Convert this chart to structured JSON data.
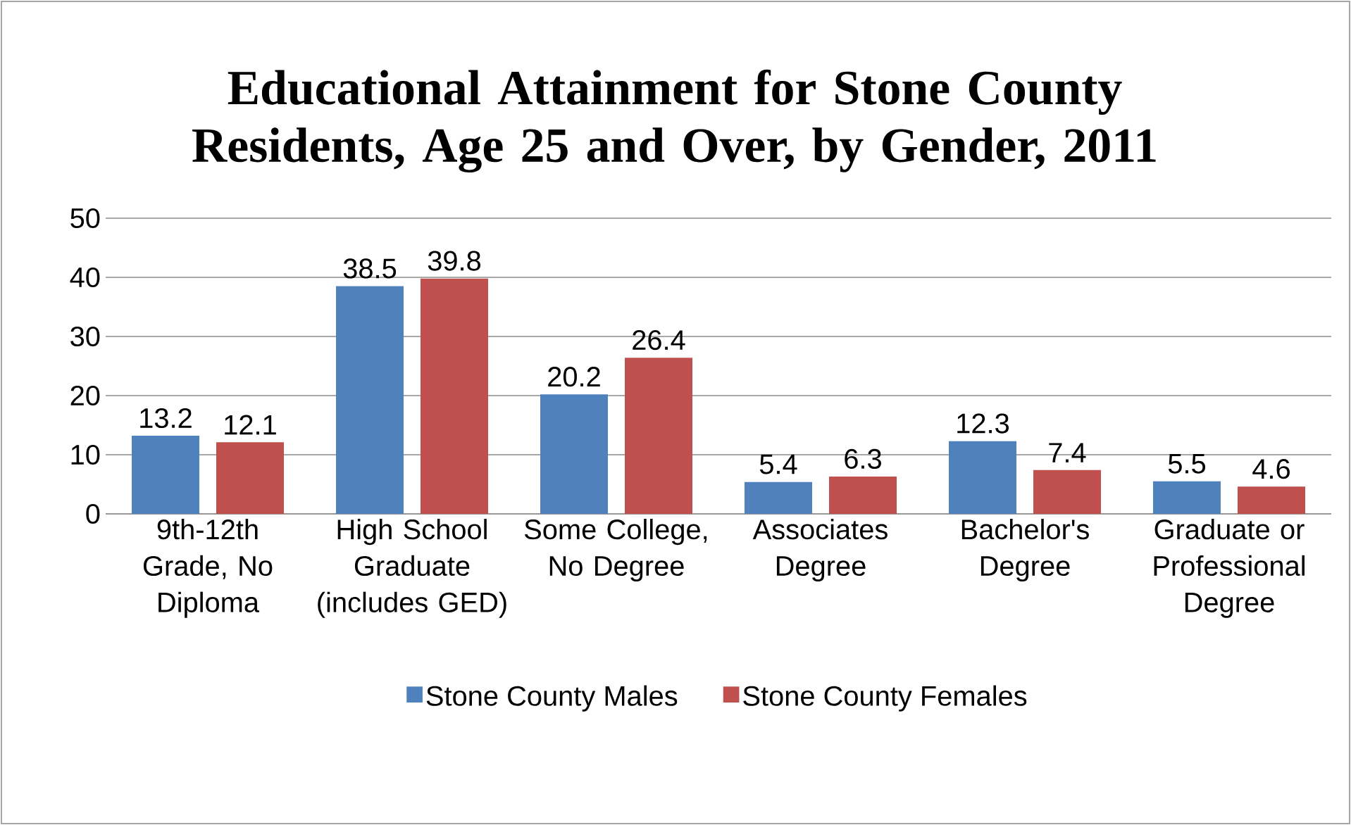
{
  "chart_data": {
    "type": "bar",
    "title": "Educational Attainment for Stone County Residents, Age 25 and Over, by Gender, 2011",
    "categories": [
      "9th-12th Grade, No Diploma",
      "High School Graduate (includes GED)",
      "Some College, No Degree",
      "Associates Degree",
      "Bachelor's Degree",
      "Graduate or Professional Degree"
    ],
    "series": [
      {
        "name": "Stone County Males",
        "color": "#4f81bd",
        "values": [
          13.2,
          38.5,
          20.2,
          5.4,
          12.3,
          5.5
        ]
      },
      {
        "name": "Stone County Females",
        "color": "#c0504d",
        "values": [
          12.1,
          39.8,
          26.4,
          6.3,
          7.4,
          4.6
        ]
      }
    ],
    "ylim": [
      0,
      50
    ],
    "yticks": [
      0,
      10,
      20,
      30,
      40,
      50
    ],
    "grid": "y",
    "legend": "bottom",
    "data_labels": true
  }
}
